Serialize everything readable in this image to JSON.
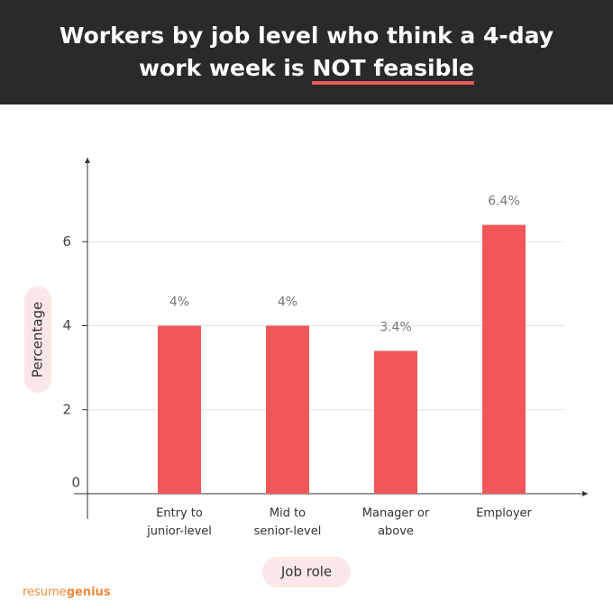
{
  "chart_data": {
    "type": "bar",
    "title": "Workers by job level who think a 4-day work week is",
    "title_highlight": "NOT feasible",
    "categories": [
      [
        "Entry to",
        "junior-level"
      ],
      [
        "Mid to",
        "senior-level"
      ],
      [
        "Manager or",
        "above"
      ],
      [
        "Employer"
      ]
    ],
    "values": [
      4,
      4,
      3.4,
      6.4
    ],
    "value_labels": [
      "4%",
      "4%",
      "3.4%",
      "6.4%"
    ],
    "color": "#f15759",
    "ylim": [
      0,
      8
    ],
    "yticks": [
      0,
      2,
      4,
      6
    ],
    "grid": true,
    "y_label": "Percentage",
    "x_label": "Job role"
  },
  "brand": {
    "light": "resume",
    "bold": "genius"
  }
}
